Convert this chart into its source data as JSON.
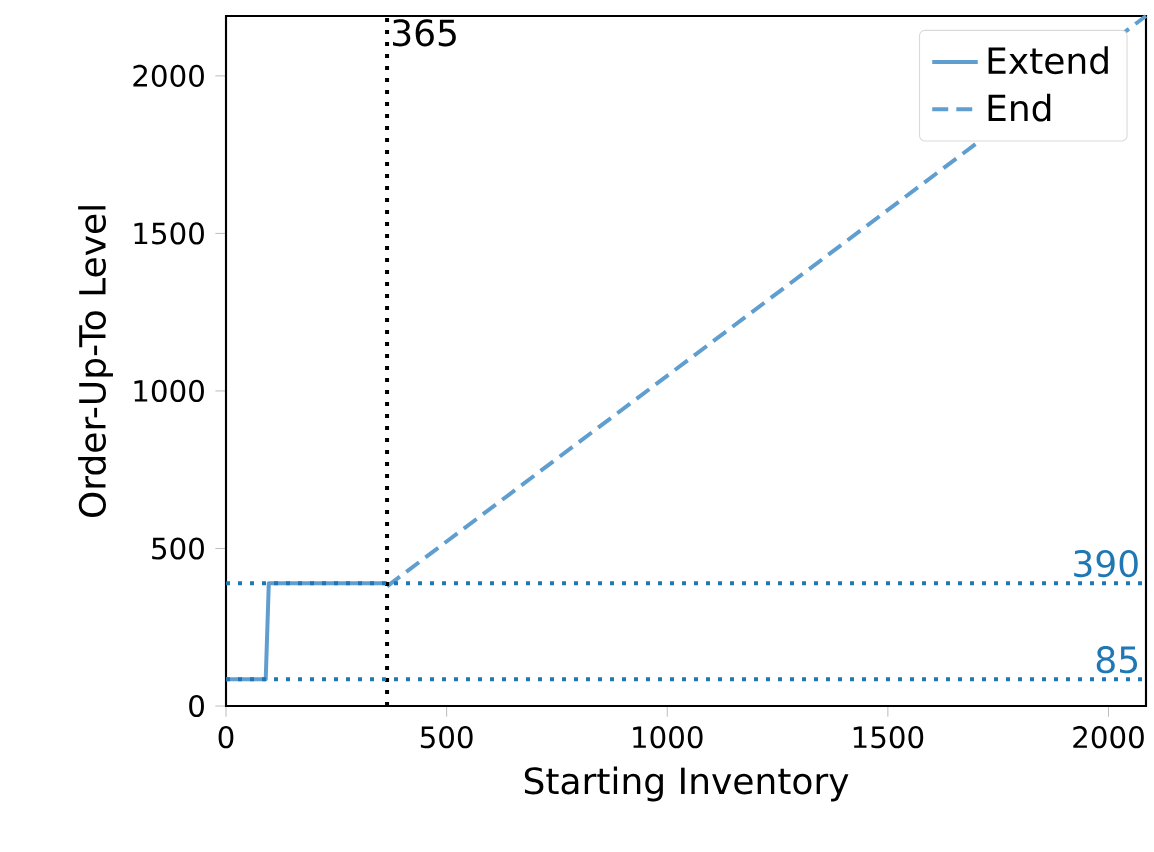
{
  "chart_data": {
    "type": "line",
    "xlabel": "Starting Inventory",
    "ylabel": "Order-Up-To Level",
    "xlim": [
      0,
      2085
    ],
    "ylim": [
      0,
      2190
    ],
    "xticks": [
      0,
      500,
      1000,
      1500,
      2000
    ],
    "yticks": [
      0,
      500,
      1000,
      1500,
      2000
    ],
    "series": [
      {
        "name": "Extend",
        "color": "#5f9ecf",
        "line_style": "solid",
        "x": [
          0,
          90,
          97,
          365
        ],
        "values": [
          85,
          85,
          390,
          390
        ]
      },
      {
        "name": "End",
        "color": "#5f9ecf",
        "line_style": "dashed",
        "x": [
          365,
          2085
        ],
        "values": [
          380,
          2190
        ]
      }
    ],
    "ref_lines": [
      {
        "axis": "x",
        "value": 365,
        "label": "365",
        "color": "#000000",
        "line_style": "dotted"
      },
      {
        "axis": "y",
        "value": 390,
        "label": "390",
        "color": "#1f77b4",
        "line_style": "dotted"
      },
      {
        "axis": "y",
        "value": 85,
        "label": "85",
        "color": "#1f77b4",
        "line_style": "dotted"
      }
    ],
    "legend": "top right",
    "grid": false
  }
}
